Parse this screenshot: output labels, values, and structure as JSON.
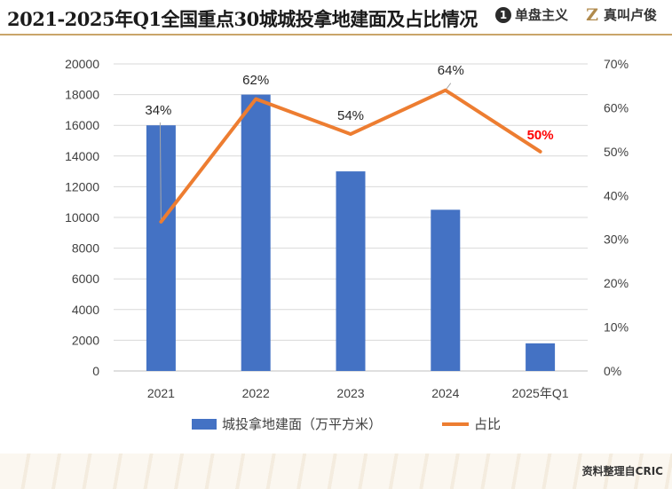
{
  "header": {
    "title": "2021-2025年Q1全国重点30城城投拿地建面及占比情况",
    "brand1": "单盘主义",
    "brand1_badge": "1",
    "brand2": "真叫卢俊",
    "brand2_badge": "Z"
  },
  "footer": {
    "source": "资料整理自CRIC"
  },
  "chart_data": {
    "type": "bar+line",
    "categories": [
      "2021",
      "2022",
      "2023",
      "2024",
      "2025年Q1"
    ],
    "series": [
      {
        "name": "城投拿地建面（万平方米）",
        "type": "bar",
        "axis": "left",
        "color": "#4472c4",
        "values": [
          16000,
          18000,
          13000,
          10500,
          1800
        ]
      },
      {
        "name": "占比",
        "type": "line",
        "axis": "right",
        "color": "#ed7d31",
        "values": [
          34,
          62,
          54,
          64,
          50
        ]
      }
    ],
    "data_labels": [
      "34%",
      "62%",
      "54%",
      "64%",
      "50%"
    ],
    "highlight_color": "#ff0000",
    "left_axis": {
      "min": 0,
      "max": 20000,
      "step": 2000,
      "ticks": [
        "0",
        "2000",
        "4000",
        "6000",
        "8000",
        "10000",
        "12000",
        "14000",
        "16000",
        "18000",
        "20000"
      ]
    },
    "right_axis": {
      "min": 0,
      "max": 70,
      "step": 10,
      "ticks": [
        "0%",
        "10%",
        "20%",
        "30%",
        "40%",
        "50%",
        "60%",
        "70%"
      ]
    },
    "grid": true,
    "legend_position": "bottom"
  }
}
